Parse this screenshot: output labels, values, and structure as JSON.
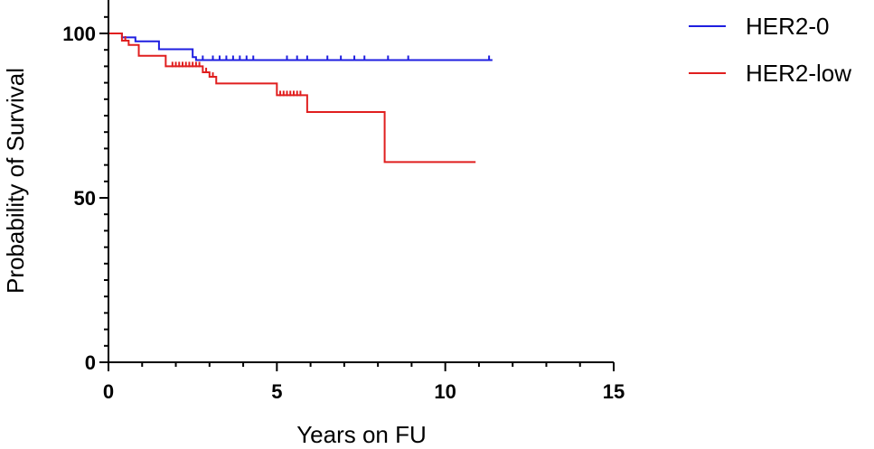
{
  "chart_data": {
    "type": "line",
    "xlabel": "Years on FU",
    "ylabel": "Probability of Survival",
    "xlim": [
      0,
      15
    ],
    "ylim": [
      0,
      100
    ],
    "x_ticks": [
      0,
      5,
      10,
      15
    ],
    "y_ticks": [
      0,
      50,
      100
    ],
    "legend_position": "top-right",
    "grid": false,
    "series": [
      {
        "name": "HER2-0",
        "color": "#1f1fe0",
        "steps": [
          [
            0,
            100
          ],
          [
            0.4,
            98.8
          ],
          [
            0.8,
            97.6
          ],
          [
            1.5,
            95.2
          ],
          [
            2.5,
            92.8
          ],
          [
            2.6,
            91.9
          ],
          [
            11.4,
            91.9
          ]
        ],
        "censor_x": [
          2.8,
          3.1,
          3.3,
          3.5,
          3.7,
          3.9,
          4.1,
          4.3,
          5.3,
          5.6,
          5.9,
          6.5,
          6.9,
          7.3,
          7.6,
          8.3,
          8.9,
          11.3
        ]
      },
      {
        "name": "HER2-low",
        "color": "#e01f1f",
        "steps": [
          [
            0,
            100
          ],
          [
            0.4,
            97.8
          ],
          [
            0.6,
            96.5
          ],
          [
            0.9,
            93.2
          ],
          [
            1.7,
            90.0
          ],
          [
            2.8,
            88.2
          ],
          [
            3.0,
            86.8
          ],
          [
            3.2,
            84.8
          ],
          [
            5.0,
            81.2
          ],
          [
            5.9,
            76.1
          ],
          [
            8.2,
            60.9
          ],
          [
            10.9,
            60.9
          ]
        ],
        "censor_x": [
          0.5,
          1.9,
          2.0,
          2.1,
          2.2,
          2.3,
          2.4,
          2.5,
          2.6,
          2.7,
          2.9,
          3.1,
          5.1,
          5.2,
          5.3,
          5.4,
          5.5,
          5.6,
          5.7
        ]
      }
    ]
  }
}
